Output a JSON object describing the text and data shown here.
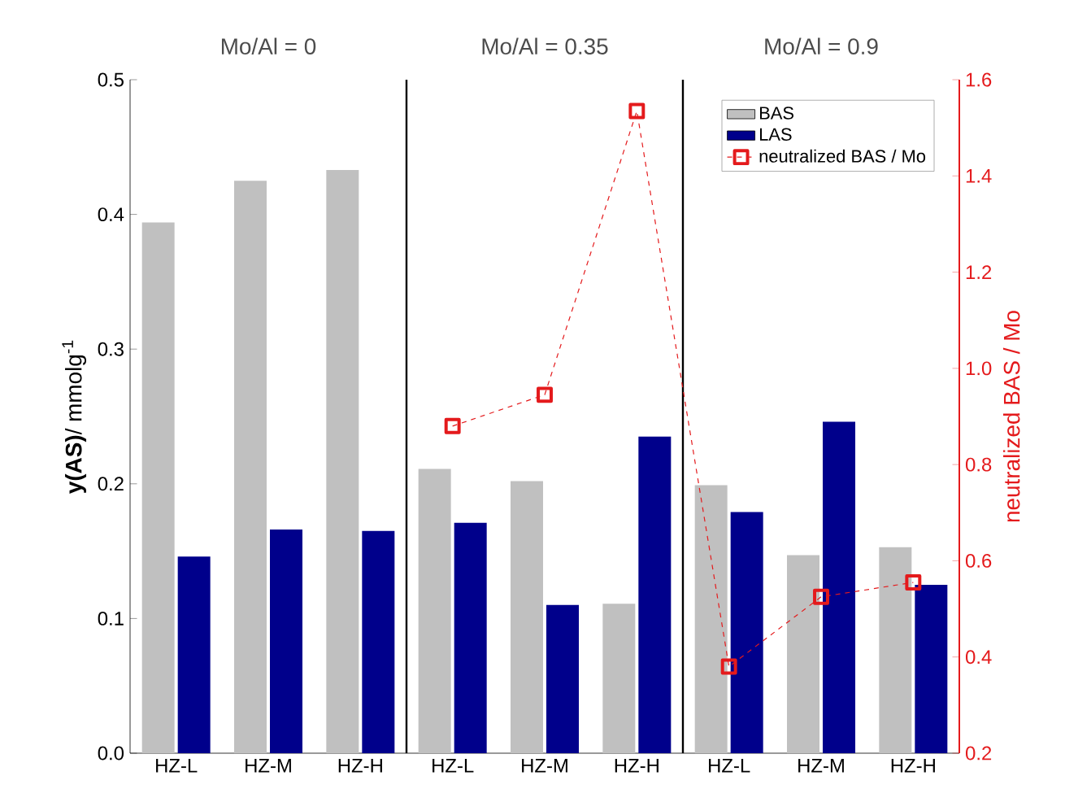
{
  "chart_data": {
    "type": "bar",
    "categories": [
      "HZ-L",
      "HZ-M",
      "HZ-H",
      "HZ-L",
      "HZ-M",
      "HZ-H",
      "HZ-L",
      "HZ-M",
      "HZ-H"
    ],
    "ylabel": "**y(AS)**/ mmolg$^{-1}$",
    "y2label": "neutralized BAS / Mo",
    "ylim": [
      0,
      0.5
    ],
    "yticks": [
      {
        "value": 0,
        "label": "0.0"
      },
      0.1,
      0.2,
      0.3,
      0.4,
      0.5
    ],
    "y2lim": [
      0.2,
      1.6
    ],
    "y2ticks": [
      0.2,
      0.4,
      0.6,
      0.8,
      {
        "value": 1,
        "label": "1.0"
      },
      1.2,
      1.4,
      1.6
    ],
    "series": [
      {
        "name": "BAS",
        "color": "#c0c0c0",
        "values": [
          0.394,
          0.425,
          0.433,
          0.211,
          0.202,
          0.111,
          0.199,
          0.147,
          0.153
        ]
      },
      {
        "name": "LAS",
        "color": "#00008b",
        "values": [
          0.146,
          0.166,
          0.165,
          0.171,
          0.11,
          0.235,
          0.179,
          0.246,
          0.125
        ]
      },
      {
        "name": "neutralized BAS / Mo",
        "type": "line",
        "axis": "y2",
        "marker": "square",
        "line_style": "dashed",
        "color": "#e41a1c",
        "values": [
          null,
          null,
          null,
          0.88,
          0.945,
          1.535,
          0.38,
          0.525,
          0.555
        ]
      }
    ],
    "annotations": [
      "Mo/Al = 0",
      "Mo/Al = 0.35",
      "Mo/Al = 0.9"
    ],
    "legend": "top right"
  }
}
